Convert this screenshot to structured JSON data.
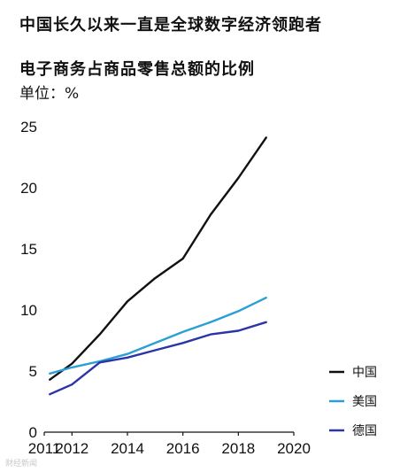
{
  "header": {
    "title": "中国长久以来一直是全球数字经济领跑者",
    "subtitle": "电子商务占商品零售总额的比例",
    "unit": "单位：%"
  },
  "watermark": "财经新闻",
  "chart_data": {
    "type": "line",
    "title": "电子商务占商品零售总额的比例",
    "ylabel": "单位：%",
    "xlim": [
      2011,
      2020
    ],
    "ylim": [
      0,
      25
    ],
    "xticks": [
      2011,
      2012,
      2014,
      2016,
      2018,
      2020
    ],
    "yticks": [
      0,
      5,
      10,
      15,
      20,
      25
    ],
    "x": [
      2011.2,
      2012,
      2013,
      2014,
      2015,
      2016,
      2017,
      2018,
      2019
    ],
    "series": [
      {
        "name": "中国",
        "color": "#111111",
        "values": [
          4.3,
          5.6,
          8.0,
          10.7,
          12.6,
          14.2,
          17.8,
          20.8,
          24.1
        ]
      },
      {
        "name": "美国",
        "color": "#2a9fd6",
        "values": [
          4.8,
          5.3,
          5.8,
          6.4,
          7.3,
          8.2,
          9.0,
          9.9,
          11.0
        ]
      },
      {
        "name": "德国",
        "color": "#2c35a8",
        "values": [
          3.1,
          3.9,
          5.7,
          6.1,
          6.7,
          7.3,
          8.0,
          8.3,
          9.0
        ]
      }
    ],
    "legend_position": "right",
    "grid": false
  }
}
